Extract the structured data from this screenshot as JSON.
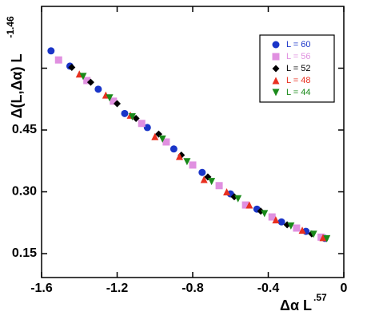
{
  "chart_data": {
    "type": "scatter",
    "x_label": "Δα L",
    "x_label_exponent": ".57",
    "y_label": "Δ(L,Δα) L",
    "y_label_exponent": "-1.46",
    "xlim": [
      -1.6,
      0
    ],
    "xticks": [
      -1.6,
      -1.2,
      -0.8,
      -0.4,
      0
    ],
    "ylim": [
      0.092,
      0.75
    ],
    "yticks": [
      {
        "value": 0.15,
        "label": "0.15"
      },
      {
        "value": 0.3,
        "label": "0.30"
      },
      {
        "value": 0.45,
        "label": "0.45"
      }
    ],
    "yticks_unlabeled": [
      0.6
    ],
    "series": [
      {
        "name": "L = 60",
        "color": "#1a35c8",
        "marker": "circle",
        "x": [
          -1.55,
          -1.45,
          -1.3,
          -1.16,
          -1.04,
          -0.9,
          -0.75,
          -0.6,
          -0.46,
          -0.33,
          -0.2,
          -0.1
        ],
        "values": [
          0.642,
          0.605,
          0.549,
          0.49,
          0.456,
          0.404,
          0.347,
          0.295,
          0.258,
          0.227,
          0.204,
          0.187
        ]
      },
      {
        "name": "L = 56",
        "color": "#e090e0",
        "marker": "square",
        "x": [
          -1.51,
          -1.36,
          -1.22,
          -1.07,
          -0.94,
          -0.8,
          -0.66,
          -0.52,
          -0.38,
          -0.25,
          -0.12
        ],
        "values": [
          0.62,
          0.57,
          0.52,
          0.466,
          0.421,
          0.365,
          0.315,
          0.268,
          0.239,
          0.212,
          0.19
        ]
      },
      {
        "name": "L = 52",
        "color": "#000000",
        "marker": "diamond",
        "x": [
          -1.44,
          -1.34,
          -1.2,
          -1.1,
          -0.98,
          -0.86,
          -0.72,
          -0.58,
          -0.44,
          -0.3,
          -0.17
        ],
        "values": [
          0.602,
          0.566,
          0.514,
          0.478,
          0.44,
          0.389,
          0.336,
          0.288,
          0.253,
          0.22,
          0.198
        ]
      },
      {
        "name": "L = 48",
        "color": "#e83020",
        "marker": "triangle-up",
        "x": [
          -1.4,
          -1.26,
          -1.13,
          -1.0,
          -0.87,
          -0.74,
          -0.62,
          -0.5,
          -0.36,
          -0.22,
          -0.11
        ],
        "values": [
          0.586,
          0.535,
          0.486,
          0.434,
          0.386,
          0.33,
          0.3,
          0.268,
          0.232,
          0.207,
          0.189
        ]
      },
      {
        "name": "L = 44",
        "color": "#1a8a1a",
        "marker": "triangle-down",
        "x": [
          -1.38,
          -1.24,
          -1.12,
          -0.96,
          -0.83,
          -0.7,
          -0.56,
          -0.42,
          -0.28,
          -0.16,
          -0.09
        ],
        "values": [
          0.58,
          0.528,
          0.482,
          0.428,
          0.373,
          0.325,
          0.283,
          0.247,
          0.217,
          0.197,
          0.186
        ]
      }
    ],
    "legend": "upper right"
  }
}
